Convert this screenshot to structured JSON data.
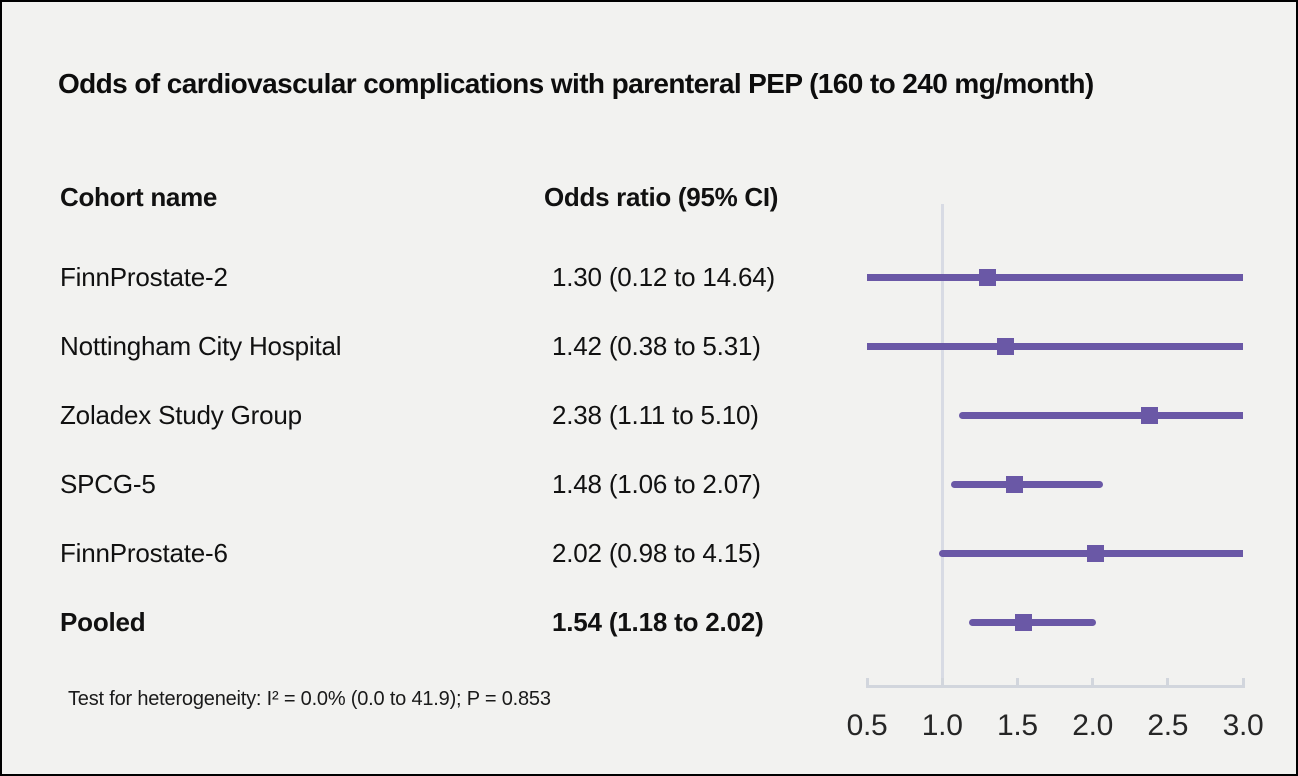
{
  "table": {
    "headers": [
      "Cohort name",
      "Odds ratio (95% CI)"
    ]
  },
  "footnote": "Test for heterogeneity: I² = 0.0% (0.0 to 41.9); P = 0.853",
  "colors": {
    "bar": "#6a58a6",
    "reference_line": "#d8dbe4",
    "axis_line": "#d2d6dd",
    "background": "#f2f2f0",
    "text": "#111111"
  },
  "chart_data": {
    "type": "scatter",
    "subtype": "forest-plot",
    "title": "Odds of cardiovascular complications with parenteral PEP (160 to 240 mg/month)",
    "xlabel": "",
    "ylabel": "",
    "x_axis": {
      "min": 0.5,
      "max": 3.0,
      "tick_values": [
        0.5,
        1.0,
        1.5,
        2.0,
        2.5,
        3.0
      ],
      "tick_labels": [
        "0.5",
        "1.0",
        "1.5",
        "2.0",
        "2.5",
        "3.0"
      ],
      "reference_line": 1.0
    },
    "legend": null,
    "grid": false,
    "points": [
      {
        "cohort": "FinnProstate-2",
        "or": 1.3,
        "ci_low": 0.12,
        "ci_high": 14.64,
        "label": "1.30 (0.12 to 14.64)",
        "pooled": false
      },
      {
        "cohort": "Nottingham City Hospital",
        "or": 1.42,
        "ci_low": 0.38,
        "ci_high": 5.31,
        "label": "1.42 (0.38 to 5.31)",
        "pooled": false
      },
      {
        "cohort": "Zoladex Study Group",
        "or": 2.38,
        "ci_low": 1.11,
        "ci_high": 5.1,
        "label": "2.38 (1.11 to 5.10)",
        "pooled": false
      },
      {
        "cohort": "SPCG-5",
        "or": 1.48,
        "ci_low": 1.06,
        "ci_high": 2.07,
        "label": "1.48 (1.06 to 2.07)",
        "pooled": false
      },
      {
        "cohort": "FinnProstate-6",
        "or": 2.02,
        "ci_low": 0.98,
        "ci_high": 4.15,
        "label": "2.02 (0.98 to 4.15)",
        "pooled": false
      },
      {
        "cohort": "Pooled",
        "or": 1.54,
        "ci_low": 1.18,
        "ci_high": 2.02,
        "label": "1.54 (1.18 to 2.02)",
        "pooled": true
      }
    ]
  }
}
